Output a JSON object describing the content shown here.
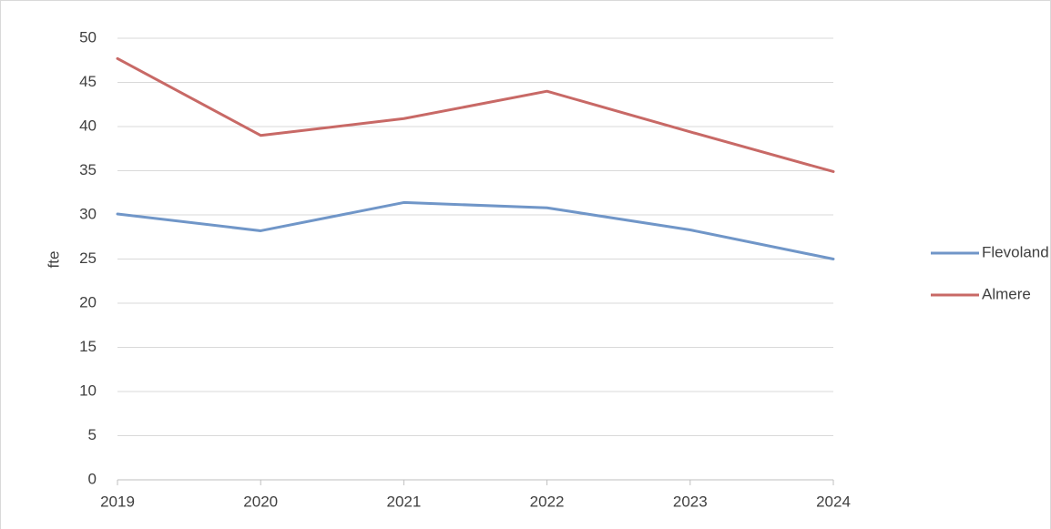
{
  "chart_data": {
    "type": "line",
    "y_label": "fte",
    "x": [
      2019,
      2020,
      2021,
      2022,
      2023,
      2024
    ],
    "xlim": [
      2019,
      2024
    ],
    "xticks": [
      2019,
      2020,
      2021,
      2022,
      2023,
      2024
    ],
    "ylim": [
      0,
      50
    ],
    "yticks": [
      0,
      5,
      10,
      15,
      20,
      25,
      30,
      35,
      40,
      45,
      50
    ],
    "grid": true,
    "legend": "right",
    "series": [
      {
        "name": "Flevoland",
        "color": "#7096c8",
        "values": [
          30.1,
          28.2,
          31.4,
          30.8,
          28.3,
          25.0
        ]
      },
      {
        "name": "Almere",
        "color": "#c86966",
        "values": [
          47.7,
          39.0,
          40.9,
          44.0,
          39.4,
          34.9
        ]
      }
    ]
  }
}
